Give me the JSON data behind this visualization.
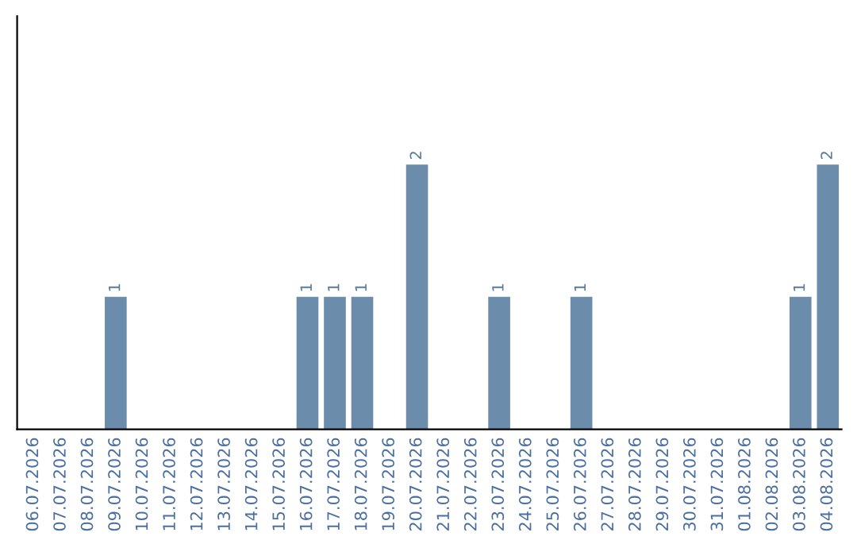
{
  "chart_data": {
    "type": "bar",
    "categories": [
      "06.07.2026",
      "07.07.2026",
      "08.07.2026",
      "09.07.2026",
      "10.07.2026",
      "11.07.2026",
      "12.07.2026",
      "13.07.2026",
      "14.07.2026",
      "15.07.2026",
      "16.07.2026",
      "17.07.2026",
      "18.07.2026",
      "19.07.2026",
      "20.07.2026",
      "21.07.2026",
      "22.07.2026",
      "23.07.2026",
      "24.07.2026",
      "25.07.2026",
      "26.07.2026",
      "27.07.2026",
      "28.07.2026",
      "29.07.2026",
      "30.07.2026",
      "31.07.2026",
      "01.08.2026",
      "02.08.2026",
      "03.08.2026",
      "04.08.2026"
    ],
    "values": [
      0,
      0,
      0,
      1,
      0,
      0,
      0,
      0,
      0,
      0,
      1,
      1,
      1,
      0,
      2,
      0,
      0,
      1,
      0,
      0,
      1,
      0,
      0,
      0,
      0,
      0,
      0,
      0,
      1,
      2
    ],
    "value_labels": [
      null,
      null,
      null,
      "1",
      null,
      null,
      null,
      null,
      null,
      null,
      "1",
      "1",
      "1",
      null,
      "2",
      null,
      null,
      "1",
      null,
      null,
      "1",
      null,
      null,
      null,
      null,
      null,
      null,
      null,
      "1",
      "2"
    ],
    "color": "#6b8cab",
    "grid": false,
    "legend": false,
    "tick_labels": "x"
  }
}
